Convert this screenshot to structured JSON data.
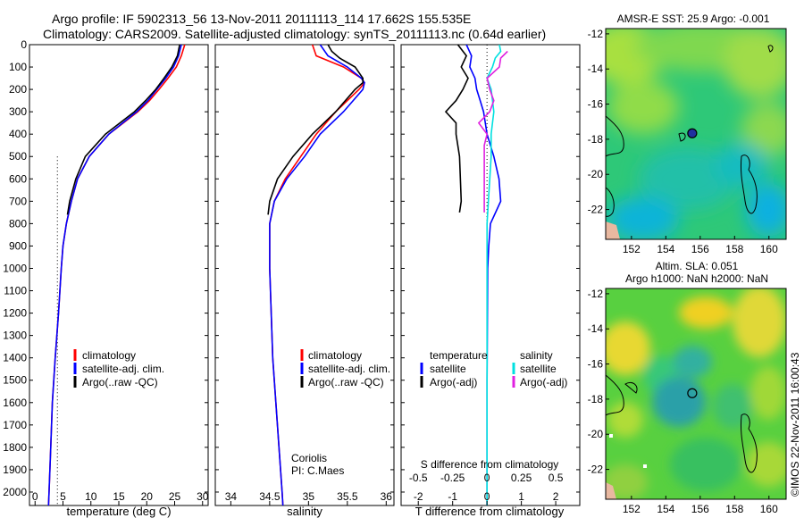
{
  "header": {
    "line1": "Argo profile: IF 5902313_56 13-Nov-2011 20111113_114 17.662S 155.535E",
    "line2": "Climatology: CARS2009. Satellite-adjusted climatology: synTS_20111113.nc (0.64d earlier)"
  },
  "colors": {
    "climatology": "#ff0000",
    "satellite": "#0000ff",
    "argo": "#000000",
    "argo_salinity": "#e020e0",
    "satellite_salinity": "#00e0e0"
  },
  "depth_axis": {
    "ylim": [
      0,
      2060
    ],
    "ticks": [
      0,
      100,
      200,
      300,
      400,
      500,
      600,
      700,
      800,
      900,
      1000,
      1100,
      1200,
      1300,
      1400,
      1500,
      1600,
      1700,
      1800,
      1900,
      2000
    ],
    "tick_labels": [
      "0",
      "100",
      "200",
      "300",
      "400",
      "500",
      "600",
      "700",
      "800",
      "900",
      "1000",
      "1100",
      "1200",
      "1300",
      "1400",
      "1500",
      "1600",
      "1700",
      "1800",
      "1900",
      "2000"
    ]
  },
  "temperature_panel": {
    "xlabel": "temperature (deg C)",
    "xlim": [
      -1,
      31
    ],
    "xticks": [
      0,
      5,
      10,
      15,
      20,
      25,
      30
    ],
    "xtick_labels": [
      "0",
      "5",
      "10",
      "15",
      "20",
      "25",
      "30"
    ],
    "legend": [
      "climatology",
      "satellite-adj. clim.",
      "Argo(..raw -QC)"
    ]
  },
  "salinity_panel": {
    "xlabel": "salinity",
    "xlim": [
      33.8,
      36.1
    ],
    "xticks": [
      34,
      34.5,
      35,
      35.5,
      36
    ],
    "xtick_labels": [
      "34",
      "34.5",
      "35",
      "35.5",
      "36"
    ],
    "legend": [
      "climatology",
      "satellite-adj. clim.",
      "Argo(..raw -QC)"
    ],
    "note1": "Coriolis",
    "note2": "PI: C.Maes"
  },
  "difference_panel": {
    "xlabel": "T difference from climatology",
    "xlim": [
      -2.5,
      2.7
    ],
    "xticks": [
      -2,
      -1,
      0,
      1,
      2
    ],
    "xtick_labels": [
      "-2",
      "-1",
      "0",
      "1",
      "2"
    ],
    "top_label": "S difference from climatology",
    "s_ticks": [
      -0.5,
      -0.25,
      0,
      0.25,
      0.5
    ],
    "s_tick_labels": [
      "-0.5",
      "-0.25",
      "0",
      "0.25",
      "0.5"
    ],
    "legend_temperature_title": "temperature",
    "legend_salinity_title": "salinity",
    "legend_satellite": "satellite",
    "legend_argo": "Argo(-adj)"
  },
  "sst_map": {
    "title": "AMSR-E SST: 25.9 Argo: -0.001",
    "xticks": [
      152,
      154,
      156,
      158,
      160
    ],
    "xtick_labels": [
      "152",
      "154",
      "156",
      "158",
      "160"
    ],
    "yticks": [
      -12,
      -14,
      -16,
      -18,
      -20,
      -22
    ],
    "ytick_labels": [
      "-12",
      "-14",
      "-16",
      "-18",
      "-20",
      "-22"
    ],
    "lon_range": [
      150.5,
      161
    ],
    "lat_range": [
      -23.7,
      -11.7
    ],
    "argo_position": [
      155.535,
      -17.662
    ]
  },
  "sla_map": {
    "title_line1": "Altim. SLA: 0.051",
    "title_line2": "Argo h1000: NaN h2000: NaN",
    "xticks": [
      152,
      154,
      156,
      158,
      160
    ],
    "xtick_labels": [
      "152",
      "154",
      "156",
      "158",
      "160"
    ],
    "yticks": [
      -12,
      -14,
      -16,
      -18,
      -20,
      -22
    ],
    "ytick_labels": [
      "-12",
      "-14",
      "-16",
      "-18",
      "-20",
      "-22"
    ],
    "lon_range": [
      150.5,
      161
    ],
    "lat_range": [
      -23.7,
      -11.7
    ],
    "argo_position": [
      155.535,
      -17.662
    ]
  },
  "credit": "©IMOS 22-Nov-2011 16:00:43",
  "chart_data": [
    {
      "type": "line",
      "name": "temperature profile",
      "x_unit": "deg C",
      "y_unit": "depth",
      "series": [
        {
          "name": "climatology",
          "depth": [
            0,
            50,
            100,
            150,
            200,
            250,
            300,
            400,
            500,
            600,
            700,
            800,
            900,
            1000,
            1200,
            1400,
            1600,
            1800,
            2000,
            2060
          ],
          "values": [
            26.8,
            26.2,
            25.3,
            23.8,
            22.2,
            20.5,
            18.4,
            13.2,
            9.7,
            7.6,
            6.5,
            5.6,
            5.0,
            4.7,
            4.2,
            3.6,
            3.1,
            2.8,
            2.5,
            2.4
          ]
        },
        {
          "name": "satellite-adj. clim.",
          "depth": [
            0,
            50,
            100,
            150,
            200,
            250,
            300,
            400,
            500,
            600,
            700,
            800,
            900,
            1000,
            1200,
            1400,
            1600,
            1800,
            2000,
            2060
          ],
          "values": [
            26.2,
            25.7,
            24.8,
            23.4,
            21.8,
            20.2,
            18.2,
            13.2,
            9.7,
            7.6,
            6.5,
            5.6,
            5.0,
            4.7,
            4.2,
            3.6,
            3.1,
            2.8,
            2.5,
            2.4
          ]
        },
        {
          "name": "Argo(..raw -QC)",
          "depth": [
            0,
            50,
            100,
            150,
            200,
            250,
            300,
            400,
            500,
            600,
            700,
            760
          ],
          "values": [
            25.9,
            25.5,
            24.5,
            23.1,
            21.6,
            19.8,
            17.8,
            12.6,
            9.0,
            7.3,
            6.2,
            5.8
          ]
        }
      ]
    },
    {
      "type": "line",
      "name": "salinity profile",
      "y_unit": "depth",
      "series": [
        {
          "name": "climatology",
          "depth": [
            0,
            50,
            100,
            150,
            170,
            200,
            300,
            400,
            500,
            600,
            700,
            800,
            900,
            1000,
            1200,
            1400,
            1600,
            1800,
            2000,
            2060
          ],
          "values": [
            35.05,
            35.1,
            35.45,
            35.68,
            35.72,
            35.65,
            35.35,
            35.1,
            34.9,
            34.7,
            34.56,
            34.5,
            34.5,
            34.5,
            34.52,
            34.54,
            34.58,
            34.62,
            34.66,
            34.67
          ]
        },
        {
          "name": "satellite-adj. clim.",
          "depth": [
            0,
            50,
            100,
            150,
            170,
            200,
            300,
            400,
            500,
            600,
            700,
            800,
            900,
            1000,
            1200,
            1400,
            1600,
            1800,
            2000,
            2060
          ],
          "values": [
            35.15,
            35.25,
            35.5,
            35.68,
            35.72,
            35.7,
            35.45,
            35.15,
            34.95,
            34.72,
            34.56,
            34.5,
            34.5,
            34.5,
            34.52,
            34.54,
            34.58,
            34.62,
            34.66,
            34.67
          ]
        },
        {
          "name": "Argo(..raw -QC)",
          "depth": [
            0,
            30,
            60,
            100,
            150,
            170,
            200,
            300,
            400,
            500,
            600,
            700,
            760
          ],
          "values": [
            35.25,
            35.3,
            35.4,
            35.6,
            35.7,
            35.7,
            35.6,
            35.35,
            35.05,
            34.8,
            34.6,
            34.5,
            34.48
          ]
        }
      ]
    },
    {
      "type": "line",
      "name": "difference from climatology",
      "y_unit": "depth",
      "series": [
        {
          "name": "temperature satellite",
          "depth": [
            0,
            50,
            100,
            150,
            200,
            250,
            300,
            400,
            500,
            600,
            700,
            800,
            900,
            1000,
            1500,
            2000,
            2060
          ],
          "values": [
            -0.6,
            -0.45,
            -0.5,
            -0.35,
            -0.3,
            -0.2,
            -0.1,
            0.0,
            0.2,
            0.35,
            0.4,
            0.1,
            0.05,
            0.02,
            0.0,
            0.0,
            0.0
          ]
        },
        {
          "name": "temperature Argo(-adj)",
          "depth": [
            0,
            50,
            100,
            150,
            200,
            250,
            300,
            350,
            400,
            500,
            700,
            750
          ],
          "values": [
            -0.85,
            -0.6,
            -0.75,
            -0.55,
            -0.7,
            -0.9,
            -1.2,
            -0.9,
            -0.9,
            -0.8,
            -0.75,
            -0.8
          ]
        },
        {
          "name": "salinity satellite",
          "depth": [
            0,
            30,
            60,
            100,
            150,
            200,
            300,
            400,
            500,
            700,
            800,
            1000,
            1500,
            2000,
            2060
          ],
          "values": [
            0.09,
            0.1,
            0.06,
            0.04,
            0.0,
            0.03,
            0.05,
            0.03,
            0.03,
            0.01,
            0.0,
            0.0,
            0.0,
            0.0,
            0.0
          ]
        },
        {
          "name": "salinity Argo(-adj)",
          "depth": [
            30,
            60,
            100,
            150,
            200,
            250,
            300,
            350,
            400,
            450,
            600,
            700,
            750
          ],
          "values": [
            0.15,
            0.1,
            0.09,
            0.0,
            0.02,
            0.05,
            0.02,
            -0.06,
            0.0,
            -0.02,
            -0.02,
            -0.02,
            -0.02
          ]
        }
      ]
    }
  ]
}
